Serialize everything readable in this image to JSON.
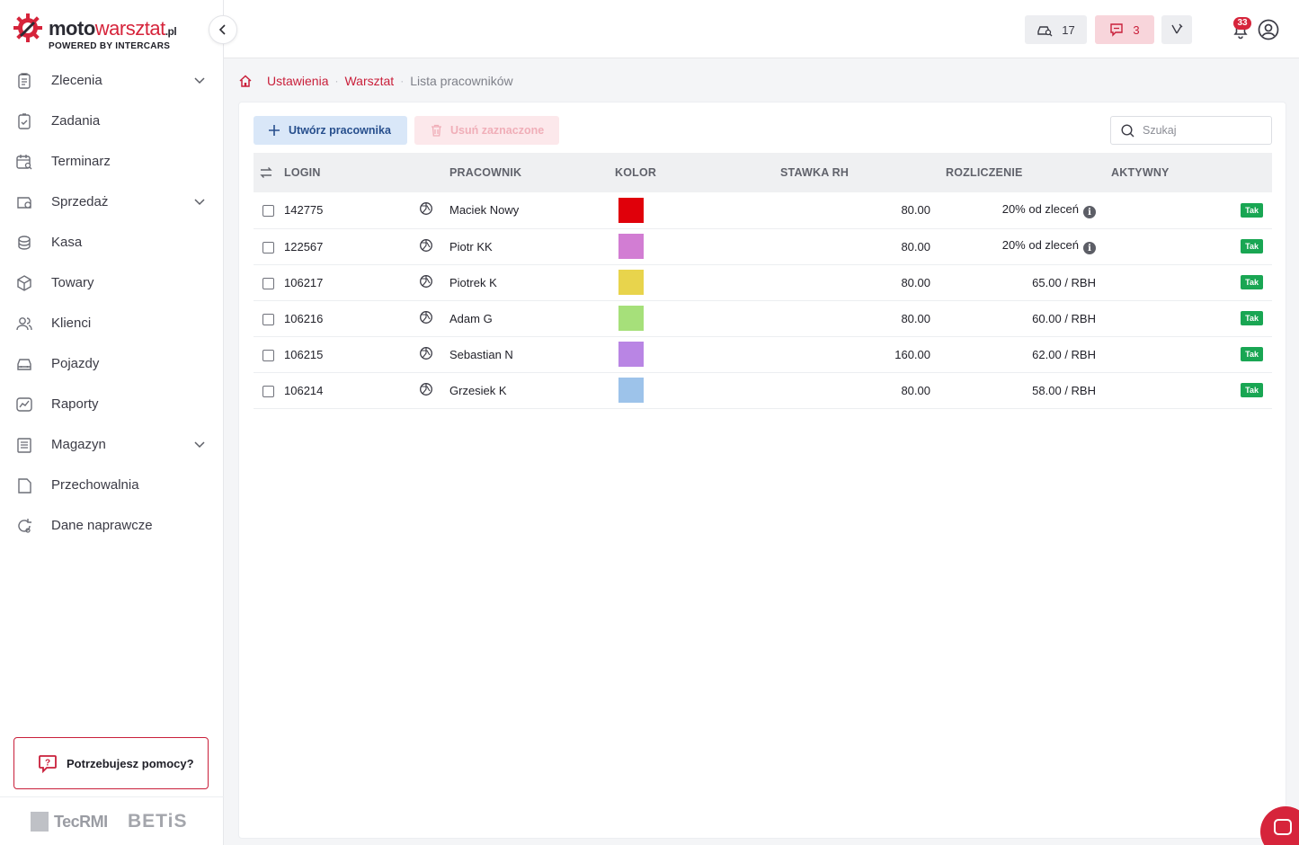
{
  "brand": {
    "name_bold": "moto",
    "name_light": "warsztat",
    "tld": ".pl",
    "powered": "POWERED BY INTERCARS"
  },
  "sidebar": {
    "items": [
      {
        "label": "Zlecenia",
        "icon": "clipboard-icon",
        "expandable": true
      },
      {
        "label": "Zadania",
        "icon": "task-check-icon",
        "expandable": false
      },
      {
        "label": "Terminarz",
        "icon": "calendar-search-icon",
        "expandable": false
      },
      {
        "label": "Sprzedaż",
        "icon": "sale-icon",
        "expandable": true
      },
      {
        "label": "Kasa",
        "icon": "coins-icon",
        "expandable": false
      },
      {
        "label": "Towary",
        "icon": "box-icon",
        "expandable": false
      },
      {
        "label": "Klienci",
        "icon": "users-icon",
        "expandable": false
      },
      {
        "label": "Pojazdy",
        "icon": "car-icon",
        "expandable": false
      },
      {
        "label": "Raporty",
        "icon": "chart-icon",
        "expandable": false
      },
      {
        "label": "Magazyn",
        "icon": "warehouse-icon",
        "expandable": true
      },
      {
        "label": "Przechowalnia",
        "icon": "storage-icon",
        "expandable": false
      },
      {
        "label": "Dane naprawcze",
        "icon": "repair-data-icon",
        "expandable": false
      }
    ],
    "help_label": "Potrzebujesz pomocy?",
    "partners": [
      "TecRMI",
      "BETiS"
    ]
  },
  "topbar": {
    "cars_count": "17",
    "messages_count": "3",
    "notifications_count": "33"
  },
  "breadcrumb": {
    "items": [
      "Ustawienia",
      "Warsztat"
    ],
    "current": "Lista pracowników"
  },
  "toolbar": {
    "create_label": "Utwórz pracownika",
    "delete_label": "Usuń zaznaczone",
    "search_placeholder": "Szukaj"
  },
  "table": {
    "headers": {
      "login": "LOGIN",
      "employee": "PRACOWNIK",
      "color": "KOLOR",
      "rate": "STAWKA RH",
      "settlement": "ROZLICZENIE",
      "active": "AKTYWNY"
    },
    "rows": [
      {
        "login": "142775",
        "employee": "Maciek Nowy",
        "color": "#e0000a",
        "rate": "80.00",
        "settlement": "20% od zleceń",
        "info": true,
        "active": "Tak"
      },
      {
        "login": "122567",
        "employee": "Piotr KK",
        "color": "#d27dd3",
        "rate": "80.00",
        "settlement": "20% od zleceń",
        "info": true,
        "active": "Tak"
      },
      {
        "login": "106217",
        "employee": "Piotrek K",
        "color": "#e8d44c",
        "rate": "80.00",
        "settlement": "65.00 / RBH",
        "info": false,
        "active": "Tak"
      },
      {
        "login": "106216",
        "employee": "Adam G",
        "color": "#a6e07a",
        "rate": "80.00",
        "settlement": "60.00 / RBH",
        "info": false,
        "active": "Tak"
      },
      {
        "login": "106215",
        "employee": "Sebastian N",
        "color": "#b985e4",
        "rate": "160.00",
        "settlement": "62.00 / RBH",
        "info": false,
        "active": "Tak"
      },
      {
        "login": "106214",
        "employee": "Grzesiek K",
        "color": "#9dc3ea",
        "rate": "80.00",
        "settlement": "58.00 / RBH",
        "info": false,
        "active": "Tak"
      }
    ]
  },
  "colors": {
    "accent": "#c91f3a",
    "active_badge": "#19a653",
    "create_button_bg": "#d9e7f8"
  }
}
